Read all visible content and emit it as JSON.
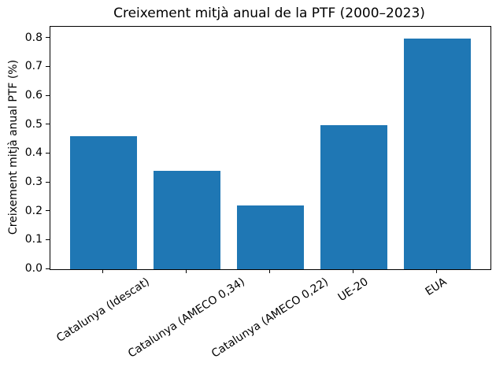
{
  "chart_data": {
    "type": "bar",
    "title": "Creixement mitjà anual de la PTF (2000–2023)",
    "ylabel": "Creixement mitjà anual PTF (%)",
    "xlabel": "",
    "categories": [
      "Catalunya (Idescat)",
      "Catalunya (AMECO 0,34)",
      "Catalunya (AMECO 0,22)",
      "UE-20",
      "EUA"
    ],
    "values": [
      0.46,
      0.34,
      0.22,
      0.5,
      0.8
    ],
    "ytick_labels": [
      "0.0",
      "0.1",
      "0.2",
      "0.3",
      "0.4",
      "0.5",
      "0.6",
      "0.7",
      "0.8"
    ],
    "ylim": [
      0,
      0.84
    ],
    "bar_color": "#1f77b4",
    "axis_color": "#000000",
    "text_color": "#000000",
    "background_color": "#ffffff",
    "grid": false,
    "legend_position": "none",
    "bar_width_fraction": 0.8,
    "xtick_rotation_deg": 33
  }
}
